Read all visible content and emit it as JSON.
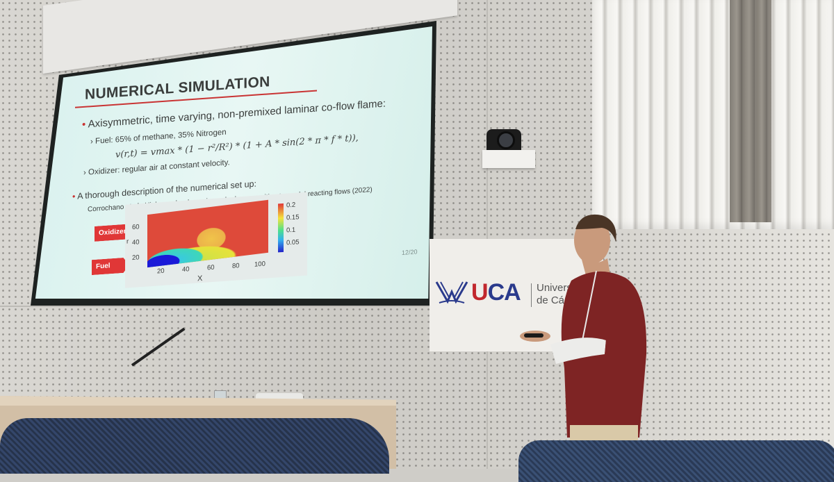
{
  "slide": {
    "title": "NUMERICAL SIMULATION",
    "bullet1": "Axisymmetric, time varying, non-premixed laminar co-flow flame:",
    "fuel_line": "Fuel: 65% of methane, 35% Nitrogen",
    "equation": "v(r,t) = vmax * (1 − r²/R²) * (1 + A * sin(2 * π * f * t)),",
    "oxidizer_line": "Oxidizer: regular air at constant velocity.",
    "bullet2": "A thorough description of the numerical set up:",
    "citation": "Corrochano et al., Higher order dynamic mode decomposition to model reacting flows (2022)",
    "arrow_oxidizer": "Oxidizer",
    "arrow_fuel": "Fuel",
    "y_axis_label": "r",
    "x_axis_label": "X",
    "y_ticks": [
      "60",
      "40",
      "20"
    ],
    "x_ticks": [
      "20",
      "40",
      "60",
      "80",
      "100"
    ],
    "colorbar_ticks": [
      "0.2",
      "0.15",
      "0.1",
      "0.05"
    ],
    "page_number": "12/20"
  },
  "banner": {
    "logo_u": "U",
    "logo_ca": "CA",
    "university_line1": "Universi",
    "university_line2": "de Cádiz"
  }
}
